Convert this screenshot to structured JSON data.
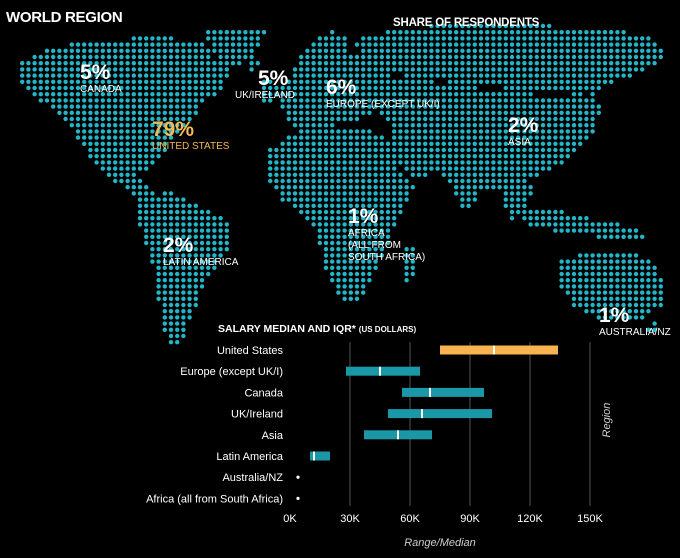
{
  "header": {
    "title": "WORLD REGION",
    "share_title": "SHARE OF RESPONDENTS"
  },
  "regions": [
    {
      "id": "canada",
      "pct": "5%",
      "name": "CANADA"
    },
    {
      "id": "us",
      "pct": "79%",
      "name": "UNITED STATES"
    },
    {
      "id": "uk",
      "pct": "5%",
      "name": "UK/IRELAND"
    },
    {
      "id": "europe",
      "pct": "6%",
      "name": "EUROPE (EXCEPT UK/I)"
    },
    {
      "id": "asia",
      "pct": "2%",
      "name": "ASIA"
    },
    {
      "id": "africa",
      "pct": "1%",
      "name": "AFRICA\n(ALL FROM\nSOUTH AFRICA)"
    },
    {
      "id": "latam",
      "pct": "2%",
      "name": "LATIN AMERICA"
    },
    {
      "id": "aus",
      "pct": "1%",
      "name": "AUSTRALIA/NZ"
    }
  ],
  "chart_title": "SALARY MEDIAN AND IQR*",
  "chart_subtitle": "(US DOLLARS)",
  "colors": {
    "dots": "#22b6c9",
    "highlight": "#f7b350",
    "bar": "#1a98a8",
    "grid": "#555555"
  },
  "chart_data": {
    "type": "bar",
    "orientation": "horizontal-range",
    "title": "SALARY MEDIAN AND IQR* (US DOLLARS)",
    "xlabel": "Range/Median",
    "ylabel": "Region",
    "xlim": [
      0,
      150000
    ],
    "x_ticks": [
      0,
      30000,
      60000,
      90000,
      120000,
      150000
    ],
    "x_tick_labels": [
      "0K",
      "30K",
      "60K",
      "90K",
      "120K",
      "150K"
    ],
    "categories": [
      "United States",
      "Europe (except UK/I)",
      "Canada",
      "UK/Ireland",
      "Asia",
      "Latin America",
      "Australia/NZ",
      "Africa (all from South Africa)"
    ],
    "q1": [
      75000,
      28000,
      56000,
      49000,
      37000,
      10000,
      3000,
      3000
    ],
    "median": [
      102000,
      45000,
      70000,
      66000,
      54000,
      12000,
      3000,
      3000
    ],
    "q3": [
      134000,
      65000,
      97000,
      101000,
      71000,
      20000,
      3000,
      3000
    ],
    "highlight": "United States",
    "grid": true
  }
}
